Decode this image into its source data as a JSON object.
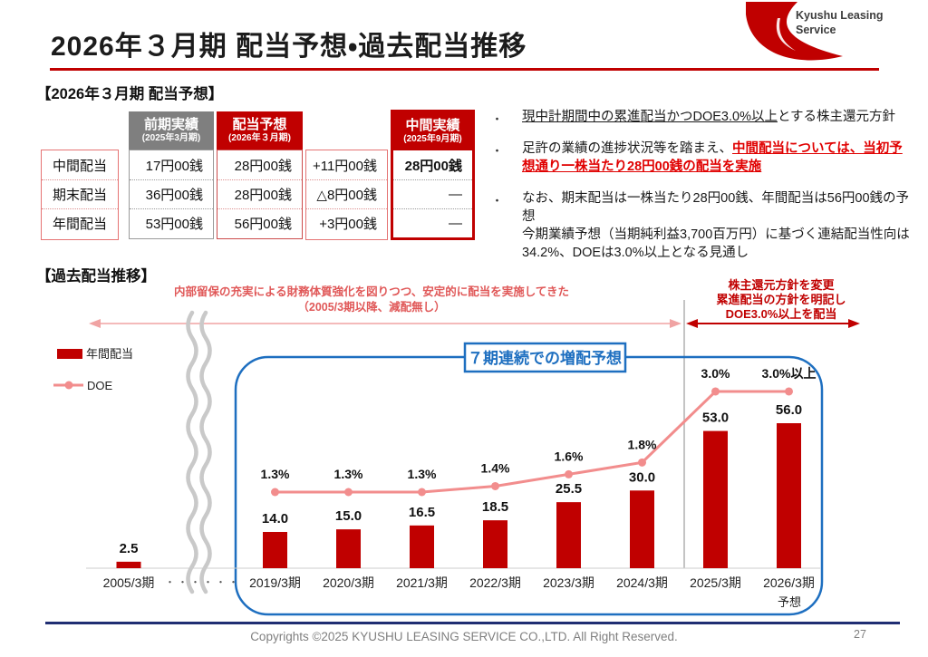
{
  "title": "2026年３月期 配当予想・過去配当推移",
  "logo": {
    "line1": "Kyushu Leasing",
    "line2": "Service"
  },
  "colors": {
    "accent_red": "#c00000",
    "line_pink": "#f28d8d",
    "blue": "#1e6fc0",
    "footer_navy": "#202e73"
  },
  "forecast": {
    "heading": "【2026年３月期 配当予想】",
    "table": {
      "headers": {
        "prev": {
          "title": "前期実績",
          "sub": "(2025年3月期)"
        },
        "forecast": {
          "title": "配当予想",
          "sub": "(2026年３月期)"
        },
        "interim": {
          "title": "中間実績",
          "sub": "(2025年9月期)"
        }
      },
      "rows": [
        {
          "label": "中間配当",
          "prev": "17円00銭",
          "forecast": "28円00銭",
          "diff": "+11円00銭",
          "interim": "28円00銭"
        },
        {
          "label": "期末配当",
          "prev": "36円00銭",
          "forecast": "28円00銭",
          "diff": "△8円00銭",
          "interim": "―"
        },
        {
          "label": "年間配当",
          "prev": "53円00銭",
          "forecast": "56円00銭",
          "diff": "+3円00銭",
          "interim": "―"
        }
      ]
    },
    "bullets": {
      "b1_underlined": "現中計期間中の累進配当かつDOE3.0%以上",
      "b1_rest": "とする株主還元方針",
      "b2_plain": "足許の業績の進捗状況等を踏まえ、",
      "b2_red": "中間配当については、当初予想通り一株当たり28円00銭の配当を実施",
      "b3_line1": "なお、期末配当は一株当たり28円00銭、年間配当は56円00銭の予想",
      "b3_line2": "今期業績予想（当期純利益3,700百万円）に基づく連結配当性向は34.2%、DOEは3.0%以上となる見通し"
    }
  },
  "history": {
    "heading": "【過去配当推移】",
    "left_note_line1": "内部留保の充実による財務体質強化を図りつつ、安定的に配当を実施してきた",
    "left_note_line2": "（2005/3期以降、減配無し）",
    "right_note_line1": "株主還元方針を変更",
    "right_note_line2": "累進配当の方針を明記し",
    "right_note_line3": "DOE3.0%以上を配当",
    "highlight_box": "７期連続での増配予想",
    "gap_dots": "・・・・・・",
    "forecast_label": "予想",
    "legend": {
      "bar": "年間配当",
      "line": "DOE"
    }
  },
  "chart_data": {
    "type": "bar",
    "subtype": "bar+line combo",
    "categories": [
      "2005/3期",
      "2019/3期",
      "2020/3期",
      "2021/3期",
      "2022/3期",
      "2023/3期",
      "2024/3期",
      "2025/3期",
      "2026/3期"
    ],
    "series": [
      {
        "name": "年間配当",
        "type": "bar",
        "unit": "円",
        "values": [
          2.5,
          14.0,
          15.0,
          16.5,
          18.5,
          25.5,
          30.0,
          53.0,
          56.0
        ],
        "labels": [
          "2.5",
          "14.0",
          "15.0",
          "16.5",
          "18.5",
          "25.5",
          "30.0",
          "53.0",
          "56.0"
        ]
      },
      {
        "name": "DOE",
        "type": "line",
        "unit": "%",
        "values": [
          null,
          1.3,
          1.3,
          1.3,
          1.4,
          1.6,
          1.8,
          3.0,
          3.0
        ],
        "labels": [
          "",
          "1.3%",
          "1.3%",
          "1.3%",
          "1.4%",
          "1.6%",
          "1.8%",
          "3.0%",
          "3.0%以上"
        ]
      }
    ],
    "title": "過去配当推移",
    "xlabel": "",
    "ylabel": "",
    "grid": false,
    "legend_position": "top-left",
    "annotations": [
      "７期連続での増配予想",
      "2026/3期は予想",
      "2005/3期と2019/3期の間に中断記号"
    ]
  },
  "footer": {
    "copyright": "Copyrights ©2025 KYUSHU LEASING SERVICE CO.,LTD. All Right Reserved.",
    "page_number": "27"
  }
}
